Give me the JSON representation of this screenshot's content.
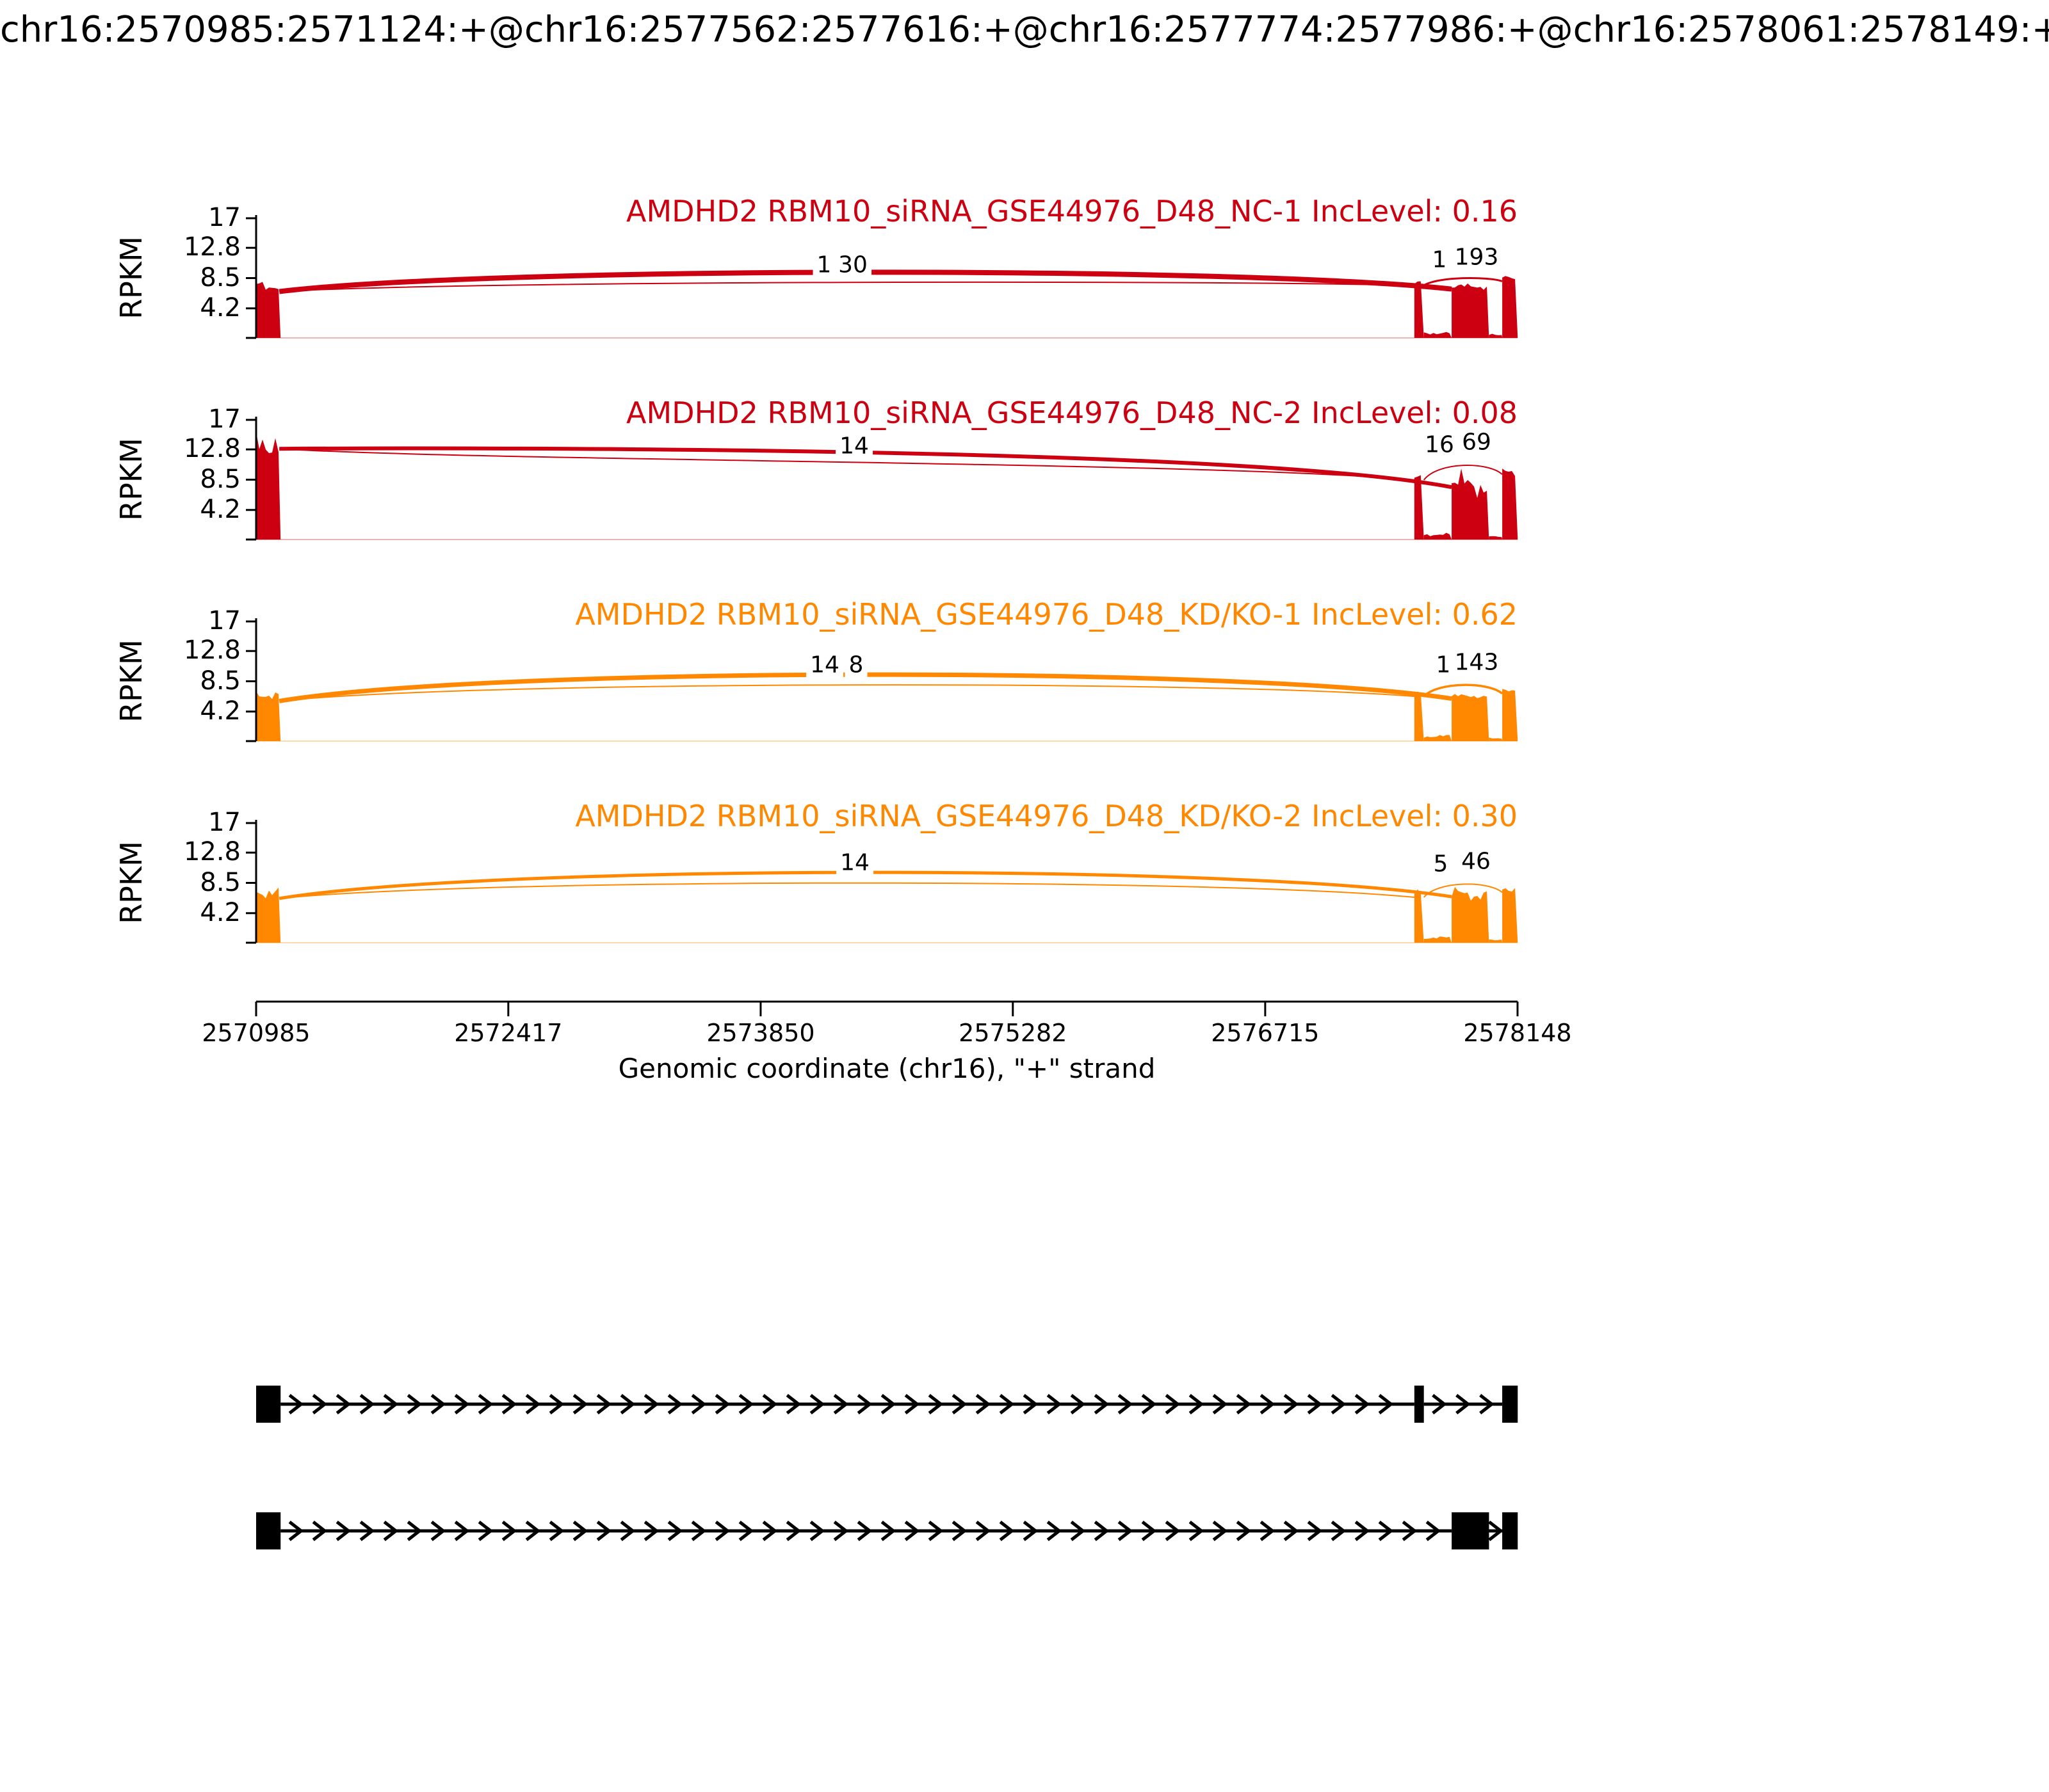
{
  "header_title": "chr16:2570985:2571124:+@chr16:2577562:2577616:+@chr16:2577774:2577986:+@chr16:2578061:2578149:+",
  "colors": {
    "group1": "#CC0011",
    "group2": "#FF8800",
    "gene_model": "#000000"
  },
  "y_axis": {
    "label": "RPKM",
    "ticks": [
      "17",
      "12.8",
      "8.5",
      "4.2"
    ]
  },
  "x_axis": {
    "label": "Genomic coordinate (chr16), \"+\" strand",
    "ticks": [
      "2570985",
      "2572417",
      "2573850",
      "2575282",
      "2576715",
      "2578148"
    ]
  },
  "chart_data": {
    "type": "sashimi",
    "event_coordinates": "chr16:2570985:2571124:+@chr16:2577562:2577616:+@chr16:2577774:2577986:+@chr16:2578061:2578149:+",
    "gene": "AMDHD2",
    "strand": "+",
    "chromosome": "chr16",
    "x_range": [
      2570985,
      2578148
    ],
    "x_tick_values": [
      2570985,
      2572417,
      2573850,
      2575282,
      2576715,
      2578148
    ],
    "y_tick_values_rpkm": [
      17,
      12.8,
      8.5,
      4.2
    ],
    "ylabel": "RPKM",
    "xlabel": "Genomic coordinate (chr16), \"+\" strand",
    "exons": {
      "upstream": [
        2570985,
        2571124
      ],
      "mxe_first": [
        2577562,
        2577616
      ],
      "mxe_second": [
        2577774,
        2577986
      ],
      "downstream": [
        2578061,
        2578149
      ]
    },
    "tracks": [
      {
        "title": "AMDHD2 RBM10_siRNA_GSE44976_D48_NC-1 IncLevel: 0.16",
        "sample": "RBM10_siRNA_GSE44976_D48_NC-1",
        "inc_level": 0.16,
        "color": "#CC0011",
        "labels": {
          "mid": [
            "1",
            "30"
          ],
          "right": [
            "1",
            "193"
          ]
        },
        "coverage_rpkm": {
          "upstream": 7.5,
          "mxe_first": 8.0,
          "mxe_second": 7.3,
          "downstream": 8.6
        }
      },
      {
        "title": "AMDHD2 RBM10_siRNA_GSE44976_D48_NC-2 IncLevel: 0.08",
        "sample": "RBM10_siRNA_GSE44976_D48_NC-2",
        "inc_level": 0.08,
        "color": "#CC0011",
        "labels": {
          "mid": [
            "14"
          ],
          "right": [
            "16",
            "69"
          ]
        },
        "coverage_rpkm": {
          "upstream": 13.8,
          "mxe_first": 9.0,
          "mxe_second": 7.8,
          "downstream": 9.8
        }
      },
      {
        "title": "AMDHD2 RBM10_siRNA_GSE44976_D48_KD/KO-1 IncLevel: 0.62",
        "sample": "RBM10_siRNA_GSE44976_D48_KD/KO-1",
        "inc_level": 0.62,
        "color": "#FF8800",
        "labels": {
          "mid": [
            "14",
            "8"
          ],
          "right": [
            "1",
            "143"
          ]
        },
        "coverage_rpkm": {
          "upstream": 6.6,
          "mxe_first": 6.9,
          "mxe_second": 6.4,
          "downstream": 7.3
        }
      },
      {
        "title": "AMDHD2 RBM10_siRNA_GSE44976_D48_KD/KO-2 IncLevel: 0.30",
        "sample": "RBM10_siRNA_GSE44976_D48_KD/KO-2",
        "inc_level": 0.3,
        "color": "#FF8800",
        "labels": {
          "mid": [
            "14"
          ],
          "right": [
            "5",
            "46"
          ]
        },
        "coverage_rpkm": {
          "upstream": 7.2,
          "mxe_first": 7.0,
          "mxe_second": 6.9,
          "downstream": 7.7
        }
      }
    ],
    "isoforms": [
      {
        "exons": [
          [
            2570985,
            2571124
          ],
          [
            2577562,
            2577616
          ],
          [
            2578061,
            2578149
          ]
        ]
      },
      {
        "exons": [
          [
            2570985,
            2571124
          ],
          [
            2577774,
            2577986
          ],
          [
            2578061,
            2578149
          ]
        ]
      }
    ]
  }
}
